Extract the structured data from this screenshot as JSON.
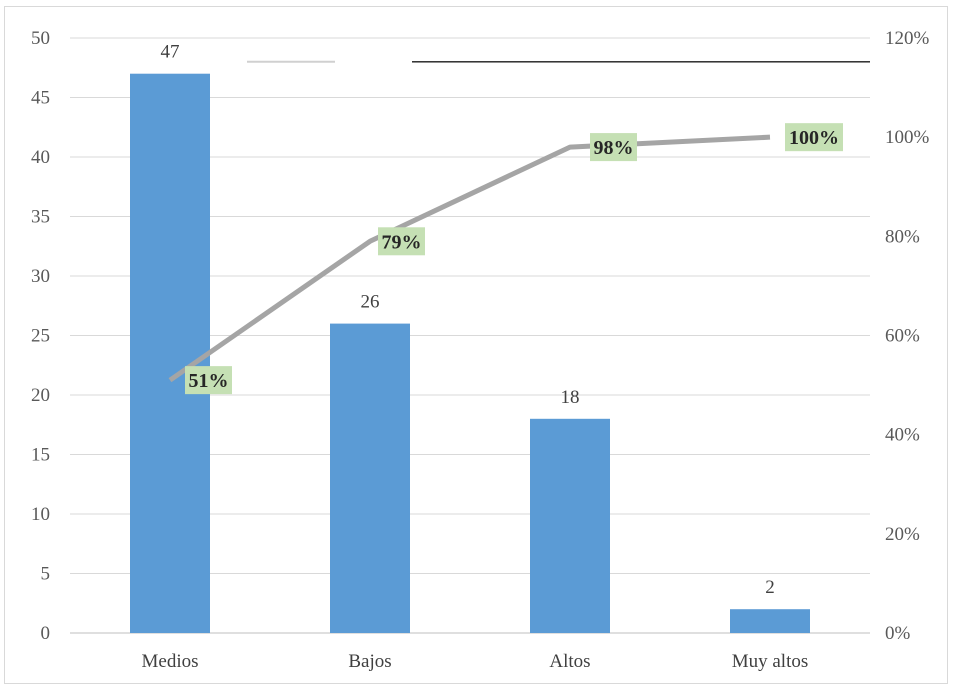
{
  "chart_data": {
    "type": "bar",
    "categories": [
      "Medios",
      "Bajos",
      "Altos",
      "Muy altos"
    ],
    "series": [
      {
        "type": "bar",
        "values": [
          47,
          26,
          18,
          2
        ],
        "color": "#5b9bd5"
      },
      {
        "type": "line",
        "axis": "secondary",
        "values": [
          51,
          79,
          98,
          100
        ],
        "labels": [
          "51%",
          "79%",
          "98%",
          "100%"
        ],
        "color": "#a5a5a5",
        "label_bg": "#c5e0b4"
      }
    ],
    "y_ticks": [
      "0",
      "5",
      "10",
      "15",
      "20",
      "25",
      "30",
      "35",
      "40",
      "45",
      "50"
    ],
    "y2_ticks": [
      "0%",
      "20%",
      "40%",
      "60%",
      "80%",
      "100%",
      "120%"
    ],
    "ylim": [
      0,
      50
    ],
    "y2lim": [
      0,
      120
    ],
    "grid": true,
    "reference_line": 48
  }
}
